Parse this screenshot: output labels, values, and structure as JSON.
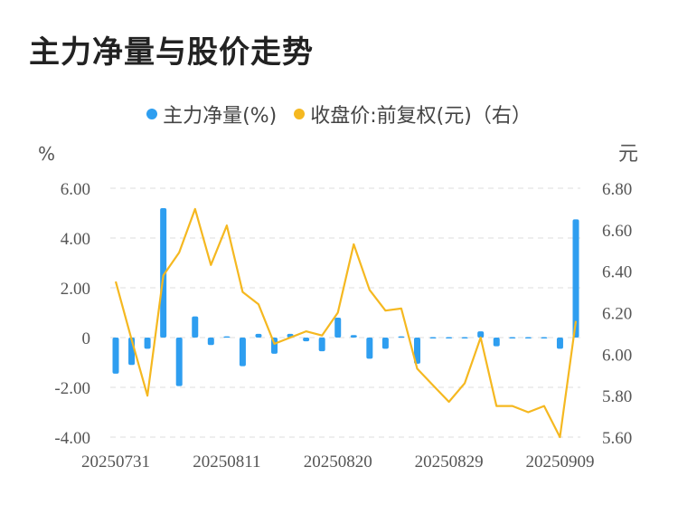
{
  "title": "主力净量与股价走势",
  "colors": {
    "bar": "#2e9ef0",
    "line": "#f5b820",
    "grid": "#dddddd",
    "axis_text": "#555555"
  },
  "chart_data": {
    "type": "bar+line",
    "left_unit": "%",
    "right_unit": "元",
    "legend_position": "top-center",
    "grid": true,
    "x_tick_labels": [
      "20250731",
      "20250811",
      "20250820",
      "20250829",
      "20250909"
    ],
    "x_tick_indices": [
      0,
      7,
      14,
      21,
      28
    ],
    "yleft_ticks": [
      "6.00",
      "4.00",
      "2.00",
      "0",
      "-2.00",
      "-4.00"
    ],
    "yleft_lim": [
      -4,
      6
    ],
    "yright_ticks": [
      "6.80",
      "6.60",
      "6.40",
      "6.20",
      "6.00",
      "5.80",
      "5.60"
    ],
    "yright_lim": [
      5.6,
      6.8
    ],
    "series": [
      {
        "name": "主力净量(%)",
        "type": "bar",
        "axis": "left",
        "values": [
          -1.45,
          -1.1,
          -0.45,
          5.2,
          -1.95,
          0.85,
          -0.3,
          0.05,
          -1.15,
          0.15,
          -0.65,
          0.15,
          -0.15,
          -0.55,
          0.8,
          0.1,
          -0.85,
          -0.45,
          0.05,
          -1.05,
          0.02,
          0.02,
          0.02,
          0.25,
          -0.35,
          0.02,
          0.02,
          0.02,
          -0.45,
          4.75
        ]
      },
      {
        "name": "收盘价:前复权(元)（右）",
        "type": "line",
        "axis": "right",
        "values": [
          6.35,
          6.07,
          5.8,
          6.38,
          6.49,
          6.7,
          6.43,
          6.62,
          6.3,
          6.24,
          6.05,
          6.08,
          6.11,
          6.09,
          6.2,
          6.53,
          6.31,
          6.21,
          6.22,
          5.93,
          5.85,
          5.77,
          5.86,
          6.08,
          5.75,
          5.75,
          5.72,
          5.75,
          5.6,
          6.16
        ]
      }
    ]
  }
}
